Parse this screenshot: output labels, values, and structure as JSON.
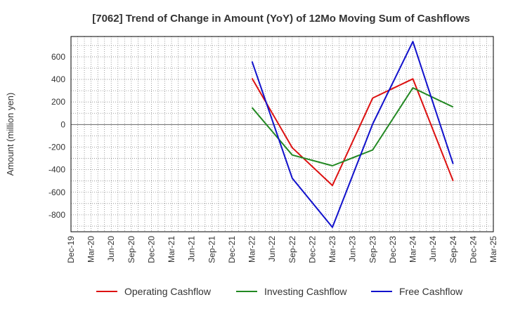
{
  "chart_data": {
    "type": "line",
    "title": "[7062]  Trend of Change in Amount (YoY) of 12Mo Moving Sum of Cashflows",
    "xlabel": "",
    "ylabel": "Amount (million yen)",
    "ylim": [
      -950,
      780
    ],
    "yticks": [
      600,
      400,
      200,
      0,
      -200,
      -400,
      -600,
      -800
    ],
    "ytick_labels": [
      "600",
      "400",
      "200",
      "0",
      "-200",
      "-400",
      "-600",
      "-800"
    ],
    "categories": [
      "Dec-19",
      "Mar-20",
      "Jun-20",
      "Sep-20",
      "Dec-20",
      "Mar-21",
      "Jun-21",
      "Sep-21",
      "Dec-21",
      "Mar-22",
      "Jun-22",
      "Sep-22",
      "Dec-22",
      "Mar-23",
      "Jun-23",
      "Sep-23",
      "Dec-23",
      "Mar-24",
      "Jun-24",
      "Sep-24",
      "Dec-24",
      "Mar-25"
    ],
    "grid": true,
    "legend_position": "bottom",
    "series": [
      {
        "name": "Operating Cashflow",
        "color": "#dd1111",
        "values": [
          null,
          null,
          null,
          null,
          null,
          null,
          null,
          null,
          null,
          410,
          null,
          -205,
          null,
          -540,
          null,
          235,
          null,
          405,
          null,
          -500,
          null,
          null
        ]
      },
      {
        "name": "Investing Cashflow",
        "color": "#228822",
        "values": [
          null,
          null,
          null,
          null,
          null,
          null,
          null,
          null,
          null,
          150,
          null,
          -270,
          null,
          -365,
          null,
          -225,
          null,
          325,
          null,
          155,
          null,
          null
        ]
      },
      {
        "name": "Free Cashflow",
        "color": "#1111cc",
        "values": [
          null,
          null,
          null,
          null,
          null,
          null,
          null,
          null,
          null,
          560,
          null,
          -475,
          null,
          -910,
          null,
          5,
          null,
          735,
          null,
          -350,
          null,
          null
        ]
      }
    ]
  }
}
